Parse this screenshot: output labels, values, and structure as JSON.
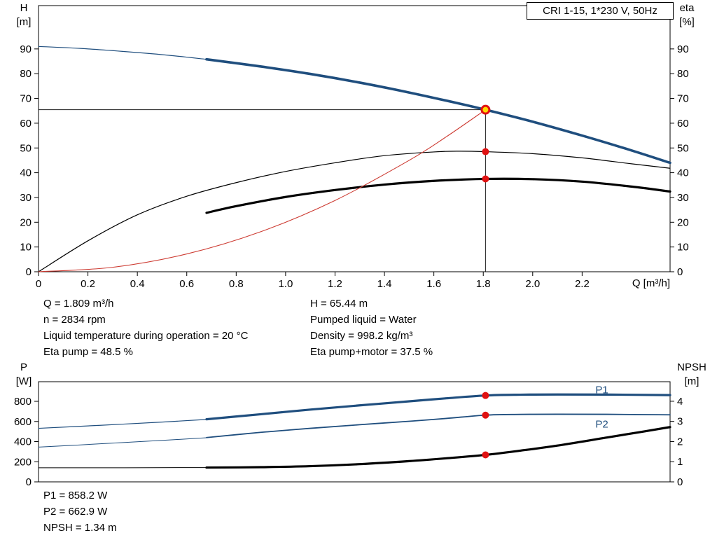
{
  "title_box": {
    "label": "CRI 1-15, 1*230 V, 50Hz"
  },
  "colors": {
    "blue": "#1f4e7e",
    "black": "#000000",
    "red": "#cd3b32",
    "marker_red": "#e01212",
    "marker_yellow": "#ffd900",
    "axis": "#000000"
  },
  "info": {
    "top_left": [
      "Q = 1.809 m³/h",
      "n = 2834 rpm",
      "Liquid temperature during operation = 20 °C",
      "Eta pump = 48.5 %"
    ],
    "top_right": [
      "H = 65.44 m",
      "Pumped liquid = Water",
      "Density = 998.2 kg/m³",
      "Eta pump+motor = 37.5 %"
    ],
    "bottom": [
      "P1 = 858.2 W",
      "P2 = 662.9 W",
      "NPSH = 1.34 m"
    ]
  },
  "chart_data": [
    {
      "type": "line",
      "title": "CRI 1-15, 1*230 V, 50Hz",
      "x_label": "Q [m³/h]",
      "y_left_label": [
        "H",
        "[m]"
      ],
      "y_right_label": [
        "eta",
        "[%]"
      ],
      "x_range": [
        0,
        2.556
      ],
      "y_left_range": [
        0,
        107.5
      ],
      "y_right_range": [
        0,
        107.5
      ],
      "grid": false,
      "legend": "none",
      "x_ticks": [
        [
          0,
          "0"
        ],
        [
          0.2,
          "0.2"
        ],
        [
          0.4,
          "0.4"
        ],
        [
          0.6,
          "0.6"
        ],
        [
          0.8,
          "0.8"
        ],
        [
          1,
          "1.0"
        ],
        [
          1.2,
          "1.2"
        ],
        [
          1.4,
          "1.4"
        ],
        [
          1.6,
          "1.6"
        ],
        [
          1.8,
          "1.8"
        ],
        [
          2,
          "2.0"
        ],
        [
          2.2,
          "2.2"
        ]
      ],
      "y_left_ticks": [
        [
          0,
          "0"
        ],
        [
          10,
          "10"
        ],
        [
          20,
          "20"
        ],
        [
          30,
          "30"
        ],
        [
          40,
          "40"
        ],
        [
          50,
          "50"
        ],
        [
          60,
          "60"
        ],
        [
          70,
          "70"
        ],
        [
          80,
          "80"
        ],
        [
          90,
          "90"
        ]
      ],
      "y_right_ticks": [
        [
          0,
          "0"
        ],
        [
          10,
          "10"
        ],
        [
          20,
          "20"
        ],
        [
          30,
          "30"
        ],
        [
          40,
          "40"
        ],
        [
          50,
          "50"
        ],
        [
          60,
          "60"
        ],
        [
          70,
          "70"
        ],
        [
          80,
          "80"
        ],
        [
          90,
          "90"
        ]
      ],
      "series": [
        {
          "name": "head-curve-lead",
          "axis": "left",
          "color": "blue",
          "width": 1.2,
          "points": [
            [
              0,
              91
            ],
            [
              0.17,
              90.2
            ],
            [
              0.34,
              89.0
            ],
            [
              0.51,
              87.6
            ],
            [
              0.68,
              85.8
            ]
          ]
        },
        {
          "name": "head-curve",
          "axis": "left",
          "color": "blue",
          "width": 3.6,
          "points": [
            [
              0.68,
              85.8
            ],
            [
              0.9,
              82.9
            ],
            [
              1.1,
              79.9
            ],
            [
              1.3,
              76.4
            ],
            [
              1.5,
              72.4
            ],
            [
              1.7,
              68.0
            ],
            [
              1.809,
              65.44
            ],
            [
              2.0,
              60.6
            ],
            [
              2.2,
              55.0
            ],
            [
              2.4,
              49.0
            ],
            [
              2.556,
              44.0
            ]
          ]
        },
        {
          "name": "eta-pump-curve",
          "axis": "right",
          "color": "black",
          "width": 1.2,
          "points": [
            [
              0,
              0
            ],
            [
              0.2,
              12.5
            ],
            [
              0.4,
              23.0
            ],
            [
              0.6,
              30.5
            ],
            [
              0.8,
              36.0
            ],
            [
              1.0,
              40.5
            ],
            [
              1.2,
              44.0
            ],
            [
              1.4,
              46.9
            ],
            [
              1.6,
              48.4
            ],
            [
              1.7,
              48.7
            ],
            [
              1.809,
              48.5
            ],
            [
              2.0,
              47.7
            ],
            [
              2.2,
              46.0
            ],
            [
              2.4,
              43.6
            ],
            [
              2.556,
              41.8
            ]
          ]
        },
        {
          "name": "eta-pump-motor-curve",
          "axis": "right",
          "color": "black",
          "width": 3.2,
          "points": [
            [
              0.68,
              23.8
            ],
            [
              0.8,
              26.5
            ],
            [
              1.0,
              30.2
            ],
            [
              1.2,
              33.0
            ],
            [
              1.4,
              35.2
            ],
            [
              1.6,
              36.7
            ],
            [
              1.809,
              37.5
            ],
            [
              2.0,
              37.4
            ],
            [
              2.2,
              36.4
            ],
            [
              2.4,
              34.4
            ],
            [
              2.556,
              32.4
            ]
          ]
        },
        {
          "name": "system-curve",
          "axis": "left",
          "color": "red",
          "width": 1.1,
          "points": [
            [
              0,
              0
            ],
            [
              0.3,
              1.8
            ],
            [
              0.6,
              7.2
            ],
            [
              0.9,
              16.2
            ],
            [
              1.2,
              28.8
            ],
            [
              1.5,
              45.0
            ],
            [
              1.65,
              54.5
            ],
            [
              1.809,
              65.44
            ]
          ]
        }
      ],
      "guides": [
        {
          "name": "duty-head-line",
          "type": "h",
          "axis": "left",
          "value": 65.44,
          "from": 0,
          "to": 1.809
        },
        {
          "name": "duty-flow-line",
          "type": "v",
          "axis": "left",
          "x": 1.809,
          "from": 0,
          "to": 65.44
        }
      ],
      "markers": [
        {
          "name": "duty-point",
          "x": 1.809,
          "y": 65.44,
          "axis": "left",
          "style": "ring",
          "interactable": "true"
        },
        {
          "name": "eta-pump-point",
          "x": 1.809,
          "y": 48.5,
          "axis": "right",
          "style": "dot",
          "interactable": "false"
        },
        {
          "name": "eta-motor-point",
          "x": 1.809,
          "y": 37.5,
          "axis": "right",
          "style": "dot",
          "interactable": "false"
        }
      ]
    },
    {
      "type": "line",
      "title": "",
      "x_label": "",
      "y_left_label": [
        "P",
        "[W]"
      ],
      "y_right_label": [
        "NPSH",
        "[m]"
      ],
      "x_range": [
        0,
        2.556
      ],
      "y_left_range": [
        0,
        995
      ],
      "y_right_range": [
        0,
        4.97
      ],
      "grid": false,
      "legend": "inline",
      "x_ticks": [],
      "y_left_ticks": [
        [
          0,
          "0"
        ],
        [
          200,
          "200"
        ],
        [
          400,
          "400"
        ],
        [
          600,
          "600"
        ],
        [
          800,
          "800"
        ]
      ],
      "y_right_ticks": [
        [
          0,
          "0"
        ],
        [
          1,
          "1"
        ],
        [
          2,
          "2"
        ],
        [
          3,
          "3"
        ],
        [
          4,
          "4"
        ]
      ],
      "series": [
        {
          "name": "p1-curve-lead",
          "axis": "left",
          "color": "blue",
          "width": 1.2,
          "points": [
            [
              0,
              532
            ],
            [
              0.25,
              562
            ],
            [
              0.5,
              594
            ],
            [
              0.68,
              620
            ]
          ]
        },
        {
          "name": "p1-curve",
          "axis": "left",
          "color": "blue",
          "width": 3.2,
          "label": "P1",
          "label_at": [
            2.28,
            880
          ],
          "points": [
            [
              0.68,
              622
            ],
            [
              0.9,
              672
            ],
            [
              1.1,
              718
            ],
            [
              1.3,
              760
            ],
            [
              1.5,
              800
            ],
            [
              1.65,
              830
            ],
            [
              1.809,
              858
            ],
            [
              1.95,
              866
            ],
            [
              2.1,
              868
            ],
            [
              2.3,
              867
            ],
            [
              2.556,
              862
            ]
          ]
        },
        {
          "name": "p2-curve-lead",
          "axis": "left",
          "color": "blue",
          "width": 1,
          "points": [
            [
              0,
              345
            ],
            [
              0.25,
              378
            ],
            [
              0.5,
              412
            ],
            [
              0.68,
              438
            ]
          ]
        },
        {
          "name": "p2-curve",
          "axis": "left",
          "color": "blue",
          "width": 1.8,
          "label": "P2",
          "label_at": [
            2.28,
            540
          ],
          "points": [
            [
              0.68,
              440
            ],
            [
              0.9,
              492
            ],
            [
              1.1,
              532
            ],
            [
              1.3,
              568
            ],
            [
              1.5,
              602
            ],
            [
              1.65,
              630
            ],
            [
              1.809,
              663
            ],
            [
              1.95,
              670
            ],
            [
              2.1,
              672
            ],
            [
              2.3,
              671
            ],
            [
              2.556,
              666
            ]
          ]
        },
        {
          "name": "npsh-curve-lead",
          "axis": "right",
          "color": "black",
          "width": 1,
          "points": [
            [
              0,
              0.7
            ],
            [
              0.35,
              0.7
            ],
            [
              0.68,
              0.71
            ]
          ]
        },
        {
          "name": "npsh-curve",
          "axis": "right",
          "color": "black",
          "width": 3.2,
          "points": [
            [
              0.68,
              0.71
            ],
            [
              0.9,
              0.73
            ],
            [
              1.1,
              0.78
            ],
            [
              1.3,
              0.88
            ],
            [
              1.5,
              1.03
            ],
            [
              1.65,
              1.17
            ],
            [
              1.809,
              1.34
            ],
            [
              1.95,
              1.55
            ],
            [
              2.1,
              1.8
            ],
            [
              2.3,
              2.2
            ],
            [
              2.45,
              2.5
            ],
            [
              2.556,
              2.72
            ]
          ]
        }
      ],
      "guides": [],
      "markers": [
        {
          "name": "p1-point",
          "x": 1.809,
          "y": 858.2,
          "axis": "left",
          "style": "dot",
          "interactable": "false"
        },
        {
          "name": "p2-point",
          "x": 1.809,
          "y": 662.9,
          "axis": "left",
          "style": "dot",
          "interactable": "false"
        },
        {
          "name": "npsh-point",
          "x": 1.809,
          "y": 1.34,
          "axis": "right",
          "style": "dot",
          "interactable": "false"
        }
      ]
    }
  ]
}
